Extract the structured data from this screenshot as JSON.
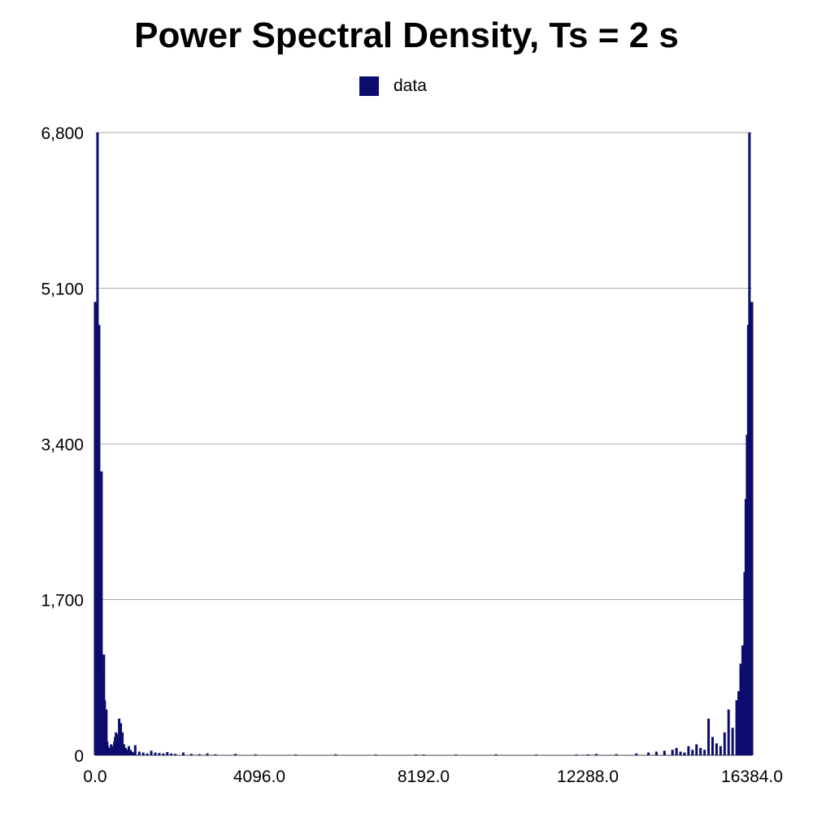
{
  "chart_data": {
    "type": "bar",
    "title": "Power Spectral Density,  Ts = 2 s",
    "xlabel": "",
    "ylabel": "",
    "xlim": [
      0,
      16384
    ],
    "ylim": [
      0,
      6800
    ],
    "x_ticks": [
      0,
      4096,
      8192,
      12288,
      16384
    ],
    "x_tick_labels": [
      "0.0",
      "4096.0",
      "8192.0",
      "12288.0",
      "16384.0"
    ],
    "y_ticks": [
      0,
      1700,
      3400,
      5100,
      6800
    ],
    "y_tick_labels": [
      "0",
      "1,700",
      "3,400",
      "5,100",
      "6,800"
    ],
    "grid": true,
    "legend_position": "top-center",
    "series": [
      {
        "name": "data",
        "color": "#0c0c6e",
        "x": [
          0,
          20,
          40,
          60,
          80,
          100,
          120,
          140,
          160,
          180,
          200,
          220,
          240,
          260,
          280,
          300,
          320,
          340,
          360,
          380,
          400,
          420,
          440,
          460,
          480,
          500,
          520,
          540,
          560,
          580,
          600,
          640,
          680,
          720,
          760,
          800,
          840,
          880,
          920,
          960,
          1000,
          1100,
          1200,
          1300,
          1400,
          1500,
          1600,
          1700,
          1800,
          1900,
          2000,
          2200,
          2400,
          2600,
          2800,
          3000,
          3500,
          4000,
          5000,
          6000,
          7000,
          8000,
          8192,
          9000,
          10000,
          11000,
          12000,
          12288,
          12500,
          13000,
          13500,
          13800,
          14000,
          14200,
          14400,
          14500,
          14600,
          14700,
          14800,
          14900,
          15000,
          15100,
          15200,
          15300,
          15400,
          15500,
          15600,
          15700,
          15800,
          15900,
          16000,
          16050,
          16100,
          16150,
          16200,
          16230,
          16260,
          16290,
          16320,
          16340,
          16360,
          16384
        ],
        "values": [
          4950,
          4200,
          2800,
          6800,
          3900,
          4700,
          2100,
          1300,
          3100,
          700,
          900,
          1100,
          600,
          200,
          500,
          150,
          100,
          80,
          60,
          50,
          120,
          100,
          80,
          60,
          150,
          200,
          250,
          230,
          180,
          120,
          400,
          350,
          250,
          120,
          80,
          60,
          100,
          60,
          40,
          30,
          110,
          40,
          30,
          20,
          50,
          30,
          25,
          20,
          35,
          20,
          15,
          30,
          15,
          12,
          20,
          10,
          15,
          10,
          8,
          10,
          8,
          8,
          8,
          8,
          10,
          8,
          8,
          10,
          15,
          12,
          20,
          30,
          40,
          50,
          60,
          80,
          40,
          30,
          100,
          60,
          120,
          80,
          60,
          400,
          200,
          130,
          100,
          250,
          500,
          300,
          600,
          700,
          1000,
          1200,
          2000,
          2800,
          3500,
          4700,
          6800,
          3600,
          4950,
          4950
        ]
      }
    ]
  }
}
